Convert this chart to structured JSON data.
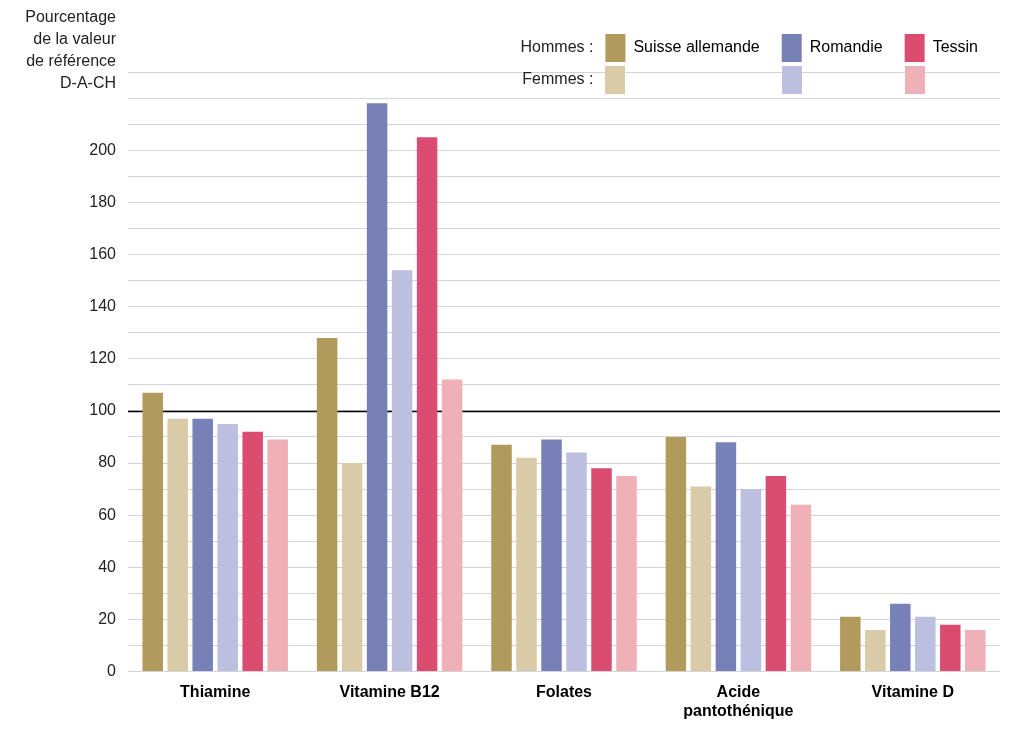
{
  "chart_data": {
    "type": "bar",
    "ylabel": "Pourcentage de la valeur de référence D-A-CH",
    "categories": [
      "Thiamine",
      "Vitamine B12",
      "Folates",
      "Acide pantothénique",
      "Vitamine D"
    ],
    "series": [
      {
        "name": "Suisse allemande",
        "color": "#b09a5c",
        "values": [
          107,
          128,
          87,
          90,
          21
        ]
      },
      {
        "color": "#d9cba8",
        "values": [
          97,
          80,
          82,
          71,
          16
        ]
      },
      {
        "name": "Romandie",
        "color": "#7880b8",
        "values": [
          97,
          218,
          89,
          88,
          26
        ]
      },
      {
        "color": "#bcbfe0",
        "values": [
          95,
          154,
          84,
          70,
          21
        ]
      },
      {
        "name": "Tessin",
        "color": "#db4d70",
        "values": [
          92,
          205,
          78,
          75,
          18
        ]
      },
      {
        "color": "#f0b0b8",
        "values": [
          89,
          112,
          75,
          64,
          16
        ]
      }
    ],
    "annotations": [
      "Hommes :",
      "Femmes :"
    ],
    "ylim": [
      0,
      230
    ],
    "yticks": [
      0,
      {
        "value": 10,
        "label": null
      },
      20,
      {
        "value": 30,
        "label": null
      },
      40,
      {
        "value": 50,
        "label": null
      },
      60,
      {
        "value": 70,
        "label": null
      },
      80,
      {
        "value": 90,
        "label": null
      },
      100,
      {
        "value": 110,
        "label": null
      },
      120,
      {
        "value": 130,
        "label": null
      },
      140,
      {
        "value": 150,
        "label": null
      },
      160,
      {
        "value": 170,
        "label": null
      },
      180,
      {
        "value": 190,
        "label": null
      },
      200,
      {
        "value": 210,
        "label": null
      },
      {
        "value": 220,
        "label": null
      },
      {
        "value": 230,
        "label": null
      }
    ],
    "ref_lines": [
      {
        "axis": "y",
        "value": 100,
        "color": "#000000"
      }
    ],
    "grid": "y",
    "legend": "top right"
  }
}
